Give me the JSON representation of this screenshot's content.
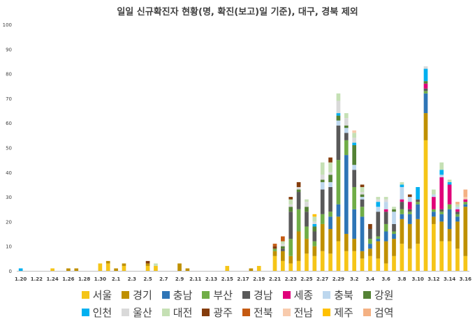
{
  "chart_data": {
    "type": "bar",
    "stacked": true,
    "title": "일일 신규확진자 현황(명, 확진(보고)일 기준), 대구, 경북 제외",
    "xlabel": "",
    "ylabel": "",
    "ylim": [
      0,
      100
    ],
    "yticks": [
      0,
      10,
      20,
      30,
      40,
      50,
      60,
      70,
      80,
      90,
      100
    ],
    "grid": false,
    "legend_position": "bottom",
    "categories": [
      "1.20",
      "1.21",
      "1.22",
      "1.23",
      "1.24",
      "1.25",
      "1.26",
      "1.27",
      "1.28",
      "1.29",
      "1.30",
      "1.31",
      "2.1",
      "2.2",
      "2.3",
      "2.4",
      "2.5",
      "2.6",
      "2.7",
      "2.8",
      "2.9",
      "2.10",
      "2.11",
      "2.12",
      "2.13",
      "2.14",
      "2.15",
      "2.16",
      "2.17",
      "2.18",
      "2.19",
      "2.20",
      "2.21",
      "2.22",
      "2.23",
      "2.24",
      "2.25",
      "2.26",
      "2.27",
      "2.28",
      "2.29",
      "3.1",
      "3.2",
      "3.3",
      "3.4",
      "3.5",
      "3.6",
      "3.7",
      "3.8",
      "3.9",
      "3.10",
      "3.11",
      "3.12",
      "3.13",
      "3.14",
      "3.15",
      "3.16"
    ],
    "xtick_labels": [
      "1.20",
      "1.22",
      "1.24",
      "1.26",
      "1.28",
      "1.30",
      "2.1",
      "2.3",
      "2.5",
      "2.7",
      "2.9",
      "2.11",
      "2.13",
      "2.15",
      "2.17",
      "2.19",
      "2.21",
      "2.23",
      "2.25",
      "2.27",
      "2.29",
      "3.2",
      "3.4",
      "3.6",
      "3.8",
      "3.10",
      "3.12",
      "3.14",
      "3.16"
    ],
    "series": [
      {
        "name": "서울",
        "color": "#F5C518",
        "values": [
          0,
          0,
          0,
          0,
          1,
          0,
          0,
          0,
          0,
          0,
          3,
          3,
          0,
          2,
          0,
          0,
          2,
          2,
          0,
          0,
          0,
          0,
          0,
          0,
          0,
          0,
          2,
          0,
          0,
          0,
          2,
          0,
          6,
          4,
          3,
          4,
          7,
          6,
          8,
          7,
          12,
          8,
          8,
          5,
          6,
          5,
          3,
          6,
          11,
          9,
          11,
          53,
          19,
          12,
          12,
          9,
          6
        ]
      },
      {
        "name": "경기",
        "color": "#BF9000",
        "values": [
          0,
          0,
          0,
          0,
          0,
          0,
          1,
          1,
          0,
          0,
          0,
          1,
          1,
          1,
          0,
          0,
          1,
          0,
          0,
          0,
          3,
          1,
          0,
          0,
          0,
          0,
          0,
          0,
          0,
          1,
          0,
          0,
          2,
          4,
          3,
          12,
          6,
          4,
          11,
          10,
          10,
          7,
          5,
          3,
          3,
          7,
          9,
          7,
          10,
          10,
          10,
          11,
          3,
          8,
          5,
          11,
          20
        ]
      },
      {
        "name": "충남",
        "color": "#2E75B6",
        "values": [
          0,
          0,
          0,
          0,
          0,
          0,
          0,
          0,
          0,
          0,
          0,
          0,
          0,
          0,
          0,
          0,
          0,
          0,
          0,
          0,
          0,
          0,
          0,
          0,
          0,
          0,
          0,
          0,
          0,
          0,
          0,
          0,
          0,
          0,
          0,
          0,
          0,
          0,
          0,
          5,
          5,
          32,
          12,
          14,
          2,
          1,
          4,
          2,
          2,
          4,
          6,
          8,
          2,
          3,
          8,
          2,
          1
        ]
      },
      {
        "name": "부산",
        "color": "#70AD47",
        "values": [
          0,
          0,
          0,
          0,
          0,
          0,
          0,
          0,
          0,
          0,
          0,
          0,
          0,
          0,
          0,
          0,
          0,
          0,
          0,
          0,
          0,
          0,
          0,
          0,
          0,
          0,
          0,
          0,
          0,
          0,
          0,
          0,
          1,
          0,
          7,
          9,
          5,
          2,
          4,
          2,
          18,
          6,
          9,
          4,
          2,
          1,
          3,
          1,
          2,
          1,
          1,
          1,
          1,
          1,
          2,
          1,
          1
        ]
      },
      {
        "name": "경남",
        "color": "#595959",
        "values": [
          0,
          0,
          0,
          0,
          0,
          0,
          0,
          0,
          0,
          0,
          0,
          0,
          0,
          0,
          0,
          0,
          0,
          0,
          0,
          0,
          0,
          0,
          0,
          0,
          0,
          0,
          0,
          0,
          0,
          0,
          0,
          0,
          0,
          1,
          11,
          7,
          6,
          4,
          10,
          10,
          14,
          3,
          7,
          3,
          4,
          10,
          5,
          3,
          3,
          1,
          1,
          1,
          0,
          1,
          0,
          1,
          0
        ]
      },
      {
        "name": "세종",
        "color": "#E0007A",
        "values": [
          0,
          0,
          0,
          0,
          0,
          0,
          0,
          0,
          0,
          0,
          0,
          0,
          0,
          0,
          0,
          0,
          0,
          0,
          0,
          0,
          0,
          0,
          0,
          0,
          0,
          0,
          0,
          0,
          0,
          0,
          0,
          0,
          0,
          0,
          0,
          0,
          0,
          0,
          0,
          0,
          0,
          0,
          0,
          0,
          0,
          0,
          1,
          0,
          1,
          3,
          0,
          2,
          5,
          13,
          8,
          1,
          1
        ]
      },
      {
        "name": "충북",
        "color": "#BDD7EE",
        "values": [
          0,
          0,
          0,
          0,
          0,
          0,
          0,
          0,
          0,
          0,
          0,
          0,
          0,
          0,
          0,
          0,
          0,
          0,
          0,
          0,
          0,
          0,
          0,
          0,
          0,
          0,
          0,
          0,
          0,
          0,
          0,
          0,
          0,
          0,
          0,
          0,
          0,
          0,
          3,
          2,
          2,
          2,
          2,
          1,
          0,
          2,
          3,
          5,
          5,
          2,
          0,
          0,
          1,
          1,
          0,
          1,
          0
        ]
      },
      {
        "name": "강원",
        "color": "#548235",
        "values": [
          0,
          0,
          0,
          0,
          0,
          0,
          0,
          0,
          0,
          0,
          0,
          0,
          0,
          0,
          0,
          0,
          0,
          0,
          0,
          0,
          0,
          0,
          0,
          0,
          0,
          0,
          0,
          0,
          0,
          0,
          0,
          0,
          0,
          1,
          2,
          1,
          2,
          2,
          1,
          3,
          2,
          1,
          8,
          1,
          0,
          0,
          0,
          1,
          0,
          0,
          0,
          1,
          0,
          0,
          0,
          0,
          0
        ]
      },
      {
        "name": "인천",
        "color": "#00B0F0",
        "values": [
          1,
          0,
          0,
          0,
          0,
          0,
          0,
          0,
          0,
          0,
          0,
          0,
          0,
          0,
          0,
          0,
          0,
          0,
          0,
          0,
          0,
          0,
          0,
          0,
          0,
          0,
          0,
          0,
          0,
          0,
          0,
          0,
          0,
          0,
          0,
          0,
          0,
          1,
          0,
          0,
          1,
          0,
          1,
          0,
          0,
          2,
          0,
          0,
          1,
          0,
          5,
          5,
          0,
          2,
          1,
          0,
          0
        ]
      },
      {
        "name": "울산",
        "color": "#D9D9D9",
        "values": [
          0,
          0,
          0,
          0,
          0,
          0,
          0,
          0,
          0,
          0,
          0,
          0,
          0,
          0,
          0,
          0,
          0,
          0,
          0,
          0,
          0,
          0,
          0,
          0,
          0,
          0,
          0,
          0,
          0,
          0,
          0,
          0,
          0,
          1,
          1,
          1,
          2,
          1,
          2,
          1,
          5,
          3,
          2,
          1,
          0,
          1,
          1,
          0,
          0,
          0,
          0,
          1,
          0,
          0,
          0,
          0,
          0
        ]
      },
      {
        "name": "대전",
        "color": "#C5E0B4",
        "values": [
          0,
          0,
          0,
          0,
          0,
          0,
          0,
          0,
          0,
          0,
          0,
          0,
          0,
          0,
          0,
          0,
          0,
          1,
          0,
          0,
          0,
          0,
          0,
          0,
          0,
          0,
          0,
          0,
          0,
          0,
          0,
          0,
          0,
          1,
          2,
          0,
          1,
          2,
          5,
          4,
          3,
          2,
          2,
          2,
          0,
          1,
          1,
          1,
          1,
          0,
          0,
          0,
          2,
          3,
          1,
          1,
          0
        ]
      },
      {
        "name": "광주",
        "color": "#843C0C",
        "values": [
          0,
          0,
          0,
          0,
          0,
          0,
          0,
          0,
          0,
          0,
          0,
          0,
          0,
          0,
          0,
          0,
          1,
          0,
          0,
          0,
          0,
          0,
          0,
          0,
          0,
          0,
          0,
          0,
          0,
          0,
          0,
          0,
          1,
          0,
          1,
          2,
          0,
          0,
          0,
          2,
          0,
          0,
          0,
          1,
          2,
          0,
          0,
          0,
          0,
          1,
          0,
          0,
          0,
          0,
          0,
          0,
          0
        ]
      },
      {
        "name": "전북",
        "color": "#C55A11",
        "values": [
          0,
          0,
          0,
          0,
          0,
          0,
          0,
          0,
          0,
          0,
          0,
          0,
          0,
          0,
          0,
          0,
          0,
          0,
          0,
          0,
          0,
          0,
          0,
          0,
          0,
          0,
          0,
          0,
          0,
          0,
          0,
          0,
          1,
          2,
          0,
          0,
          0,
          0,
          0,
          0,
          0,
          0,
          0,
          0,
          0,
          0,
          0,
          0,
          0,
          0,
          0,
          0,
          0,
          0,
          0,
          0,
          0
        ]
      },
      {
        "name": "전남",
        "color": "#F8CBAD",
        "values": [
          0,
          0,
          0,
          0,
          0,
          0,
          0,
          0,
          0,
          0,
          0,
          0,
          0,
          0,
          0,
          0,
          0,
          0,
          0,
          0,
          0,
          0,
          0,
          0,
          0,
          0,
          0,
          0,
          0,
          0,
          0,
          0,
          0,
          0,
          0,
          0,
          0,
          0,
          0,
          0,
          0,
          0,
          1,
          0,
          0,
          0,
          0,
          0,
          0,
          0,
          0,
          0,
          0,
          0,
          0,
          0,
          1
        ]
      },
      {
        "name": "제주",
        "color": "#FFC000",
        "values": [
          0,
          0,
          0,
          0,
          0,
          0,
          0,
          0,
          0,
          0,
          0,
          0,
          0,
          0,
          0,
          0,
          0,
          0,
          0,
          0,
          0,
          0,
          0,
          0,
          0,
          0,
          0,
          0,
          0,
          0,
          0,
          0,
          0,
          0,
          0,
          0,
          0,
          1,
          0,
          0,
          0,
          0,
          0,
          0,
          0,
          0,
          0,
          0,
          0,
          0,
          0,
          0,
          0,
          0,
          0,
          0,
          0
        ]
      },
      {
        "name": "검역",
        "color": "#F4B183",
        "values": [
          0,
          0,
          0,
          0,
          0,
          0,
          0,
          0,
          0,
          0,
          0,
          0,
          0,
          0,
          0,
          0,
          0,
          0,
          0,
          0,
          0,
          0,
          0,
          0,
          0,
          0,
          0,
          0,
          0,
          0,
          0,
          0,
          0,
          0,
          0,
          0,
          0,
          0,
          0,
          0,
          0,
          0,
          0,
          0,
          0,
          0,
          0,
          0,
          0,
          0,
          0,
          0,
          0,
          0,
          0,
          1,
          3
        ]
      }
    ]
  }
}
